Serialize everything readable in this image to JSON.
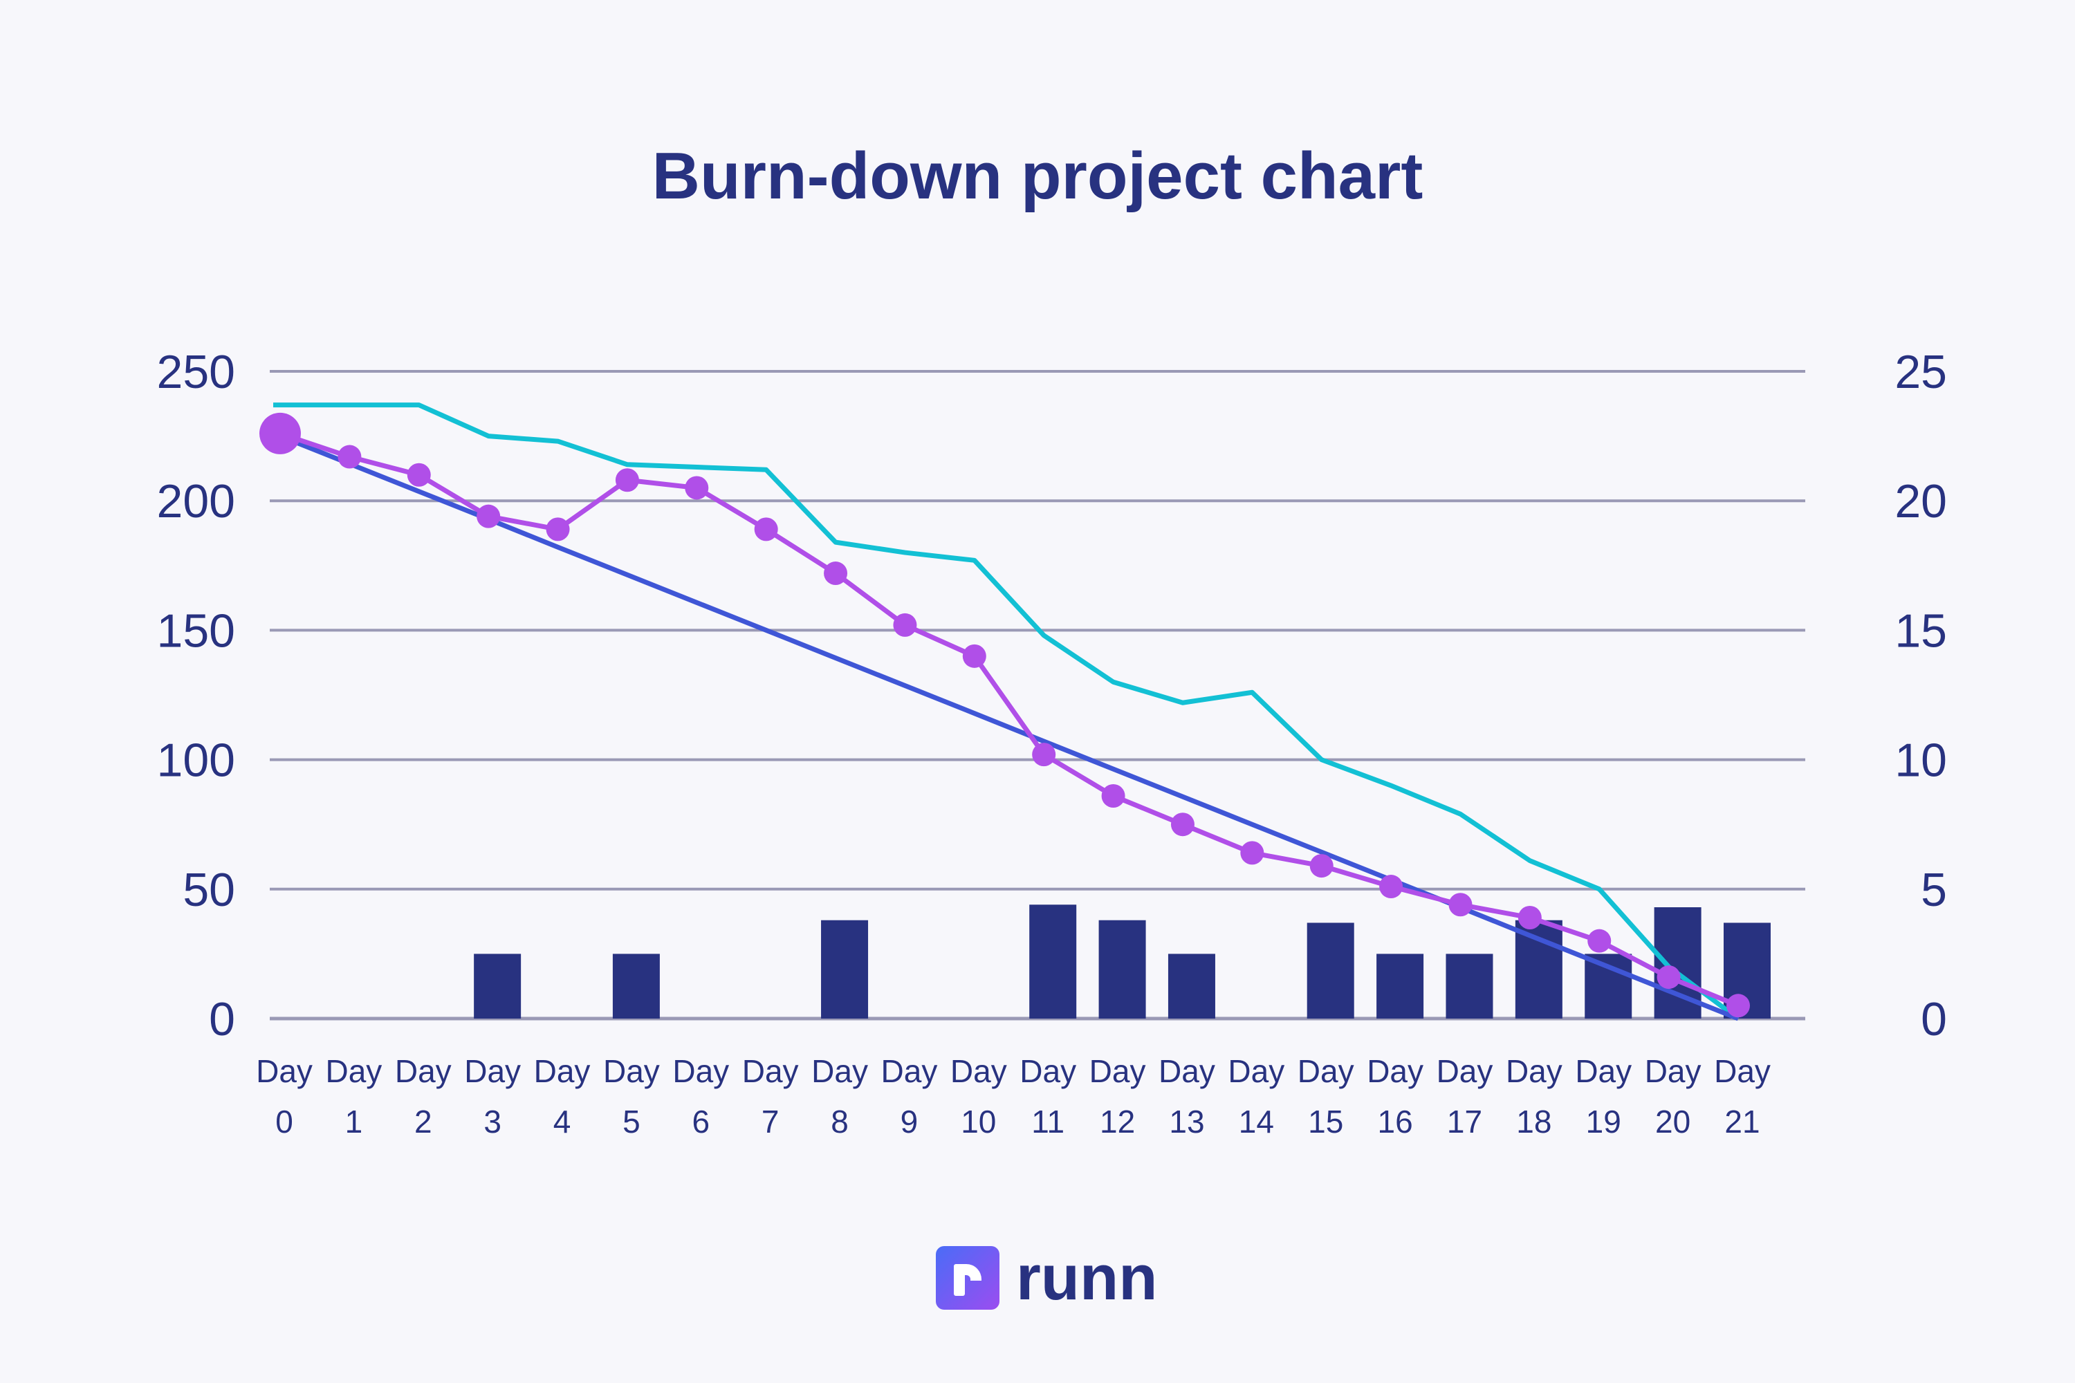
{
  "title": "Burn-down project chart",
  "logo": {
    "text": "runn",
    "icon": "runn-logo-icon"
  },
  "colors": {
    "background": "#f7f7fb",
    "text": "#283280",
    "bars": "#283280",
    "ideal": "#3f56d6",
    "actual": "#b04fe8",
    "remaining": "#13c0d4",
    "grid": "#9a99b5"
  },
  "chart_data": {
    "type": "bar+line",
    "title": "Burn-down project chart",
    "categories": [
      "Day 0",
      "Day 1",
      "Day 2",
      "Day 3",
      "Day 4",
      "Day 5",
      "Day 6",
      "Day 7",
      "Day 8",
      "Day 9",
      "Day 10",
      "Day 11",
      "Day 12",
      "Day 13",
      "Day 14",
      "Day 15",
      "Day 16",
      "Day 17",
      "Day 18",
      "Day 19",
      "Day 20",
      "Day 21"
    ],
    "y_left": {
      "ylim": [
        0,
        250
      ],
      "ticks": [
        0,
        50,
        100,
        150,
        200,
        250
      ]
    },
    "y_right": {
      "ylim": [
        0,
        25
      ],
      "ticks": [
        0,
        5,
        10,
        15,
        20,
        25
      ]
    },
    "grid": true,
    "series": [
      {
        "type": "bar",
        "axis": "right",
        "color": "#283280",
        "values": [
          0,
          0,
          0,
          2.5,
          0,
          2.5,
          0,
          0,
          3.8,
          0,
          0,
          4.4,
          3.8,
          2.5,
          0,
          3.7,
          2.5,
          2.5,
          3.8,
          2.5,
          4.3,
          3.7
        ]
      },
      {
        "type": "line",
        "axis": "left",
        "color": "#13c0d4",
        "values": [
          237,
          237,
          237,
          225,
          223,
          214,
          213,
          212,
          184,
          180,
          177,
          148,
          130,
          122,
          126,
          100,
          90,
          79,
          61,
          50,
          20,
          0
        ]
      },
      {
        "type": "line",
        "axis": "left",
        "color": "#3f56d6",
        "values": [
          225,
          214.3,
          203.6,
          192.9,
          182.1,
          171.4,
          160.7,
          150,
          139.3,
          128.6,
          117.9,
          107.1,
          96.4,
          85.7,
          75,
          64.3,
          53.6,
          42.9,
          32.1,
          21.4,
          10.7,
          0
        ]
      },
      {
        "type": "line",
        "axis": "left",
        "color": "#b04fe8",
        "markers": true,
        "values": [
          226,
          217,
          210,
          194,
          189,
          208,
          205,
          189,
          172,
          152,
          140,
          102,
          86,
          75,
          64,
          59,
          51,
          44,
          39,
          30,
          16,
          5
        ]
      }
    ]
  }
}
